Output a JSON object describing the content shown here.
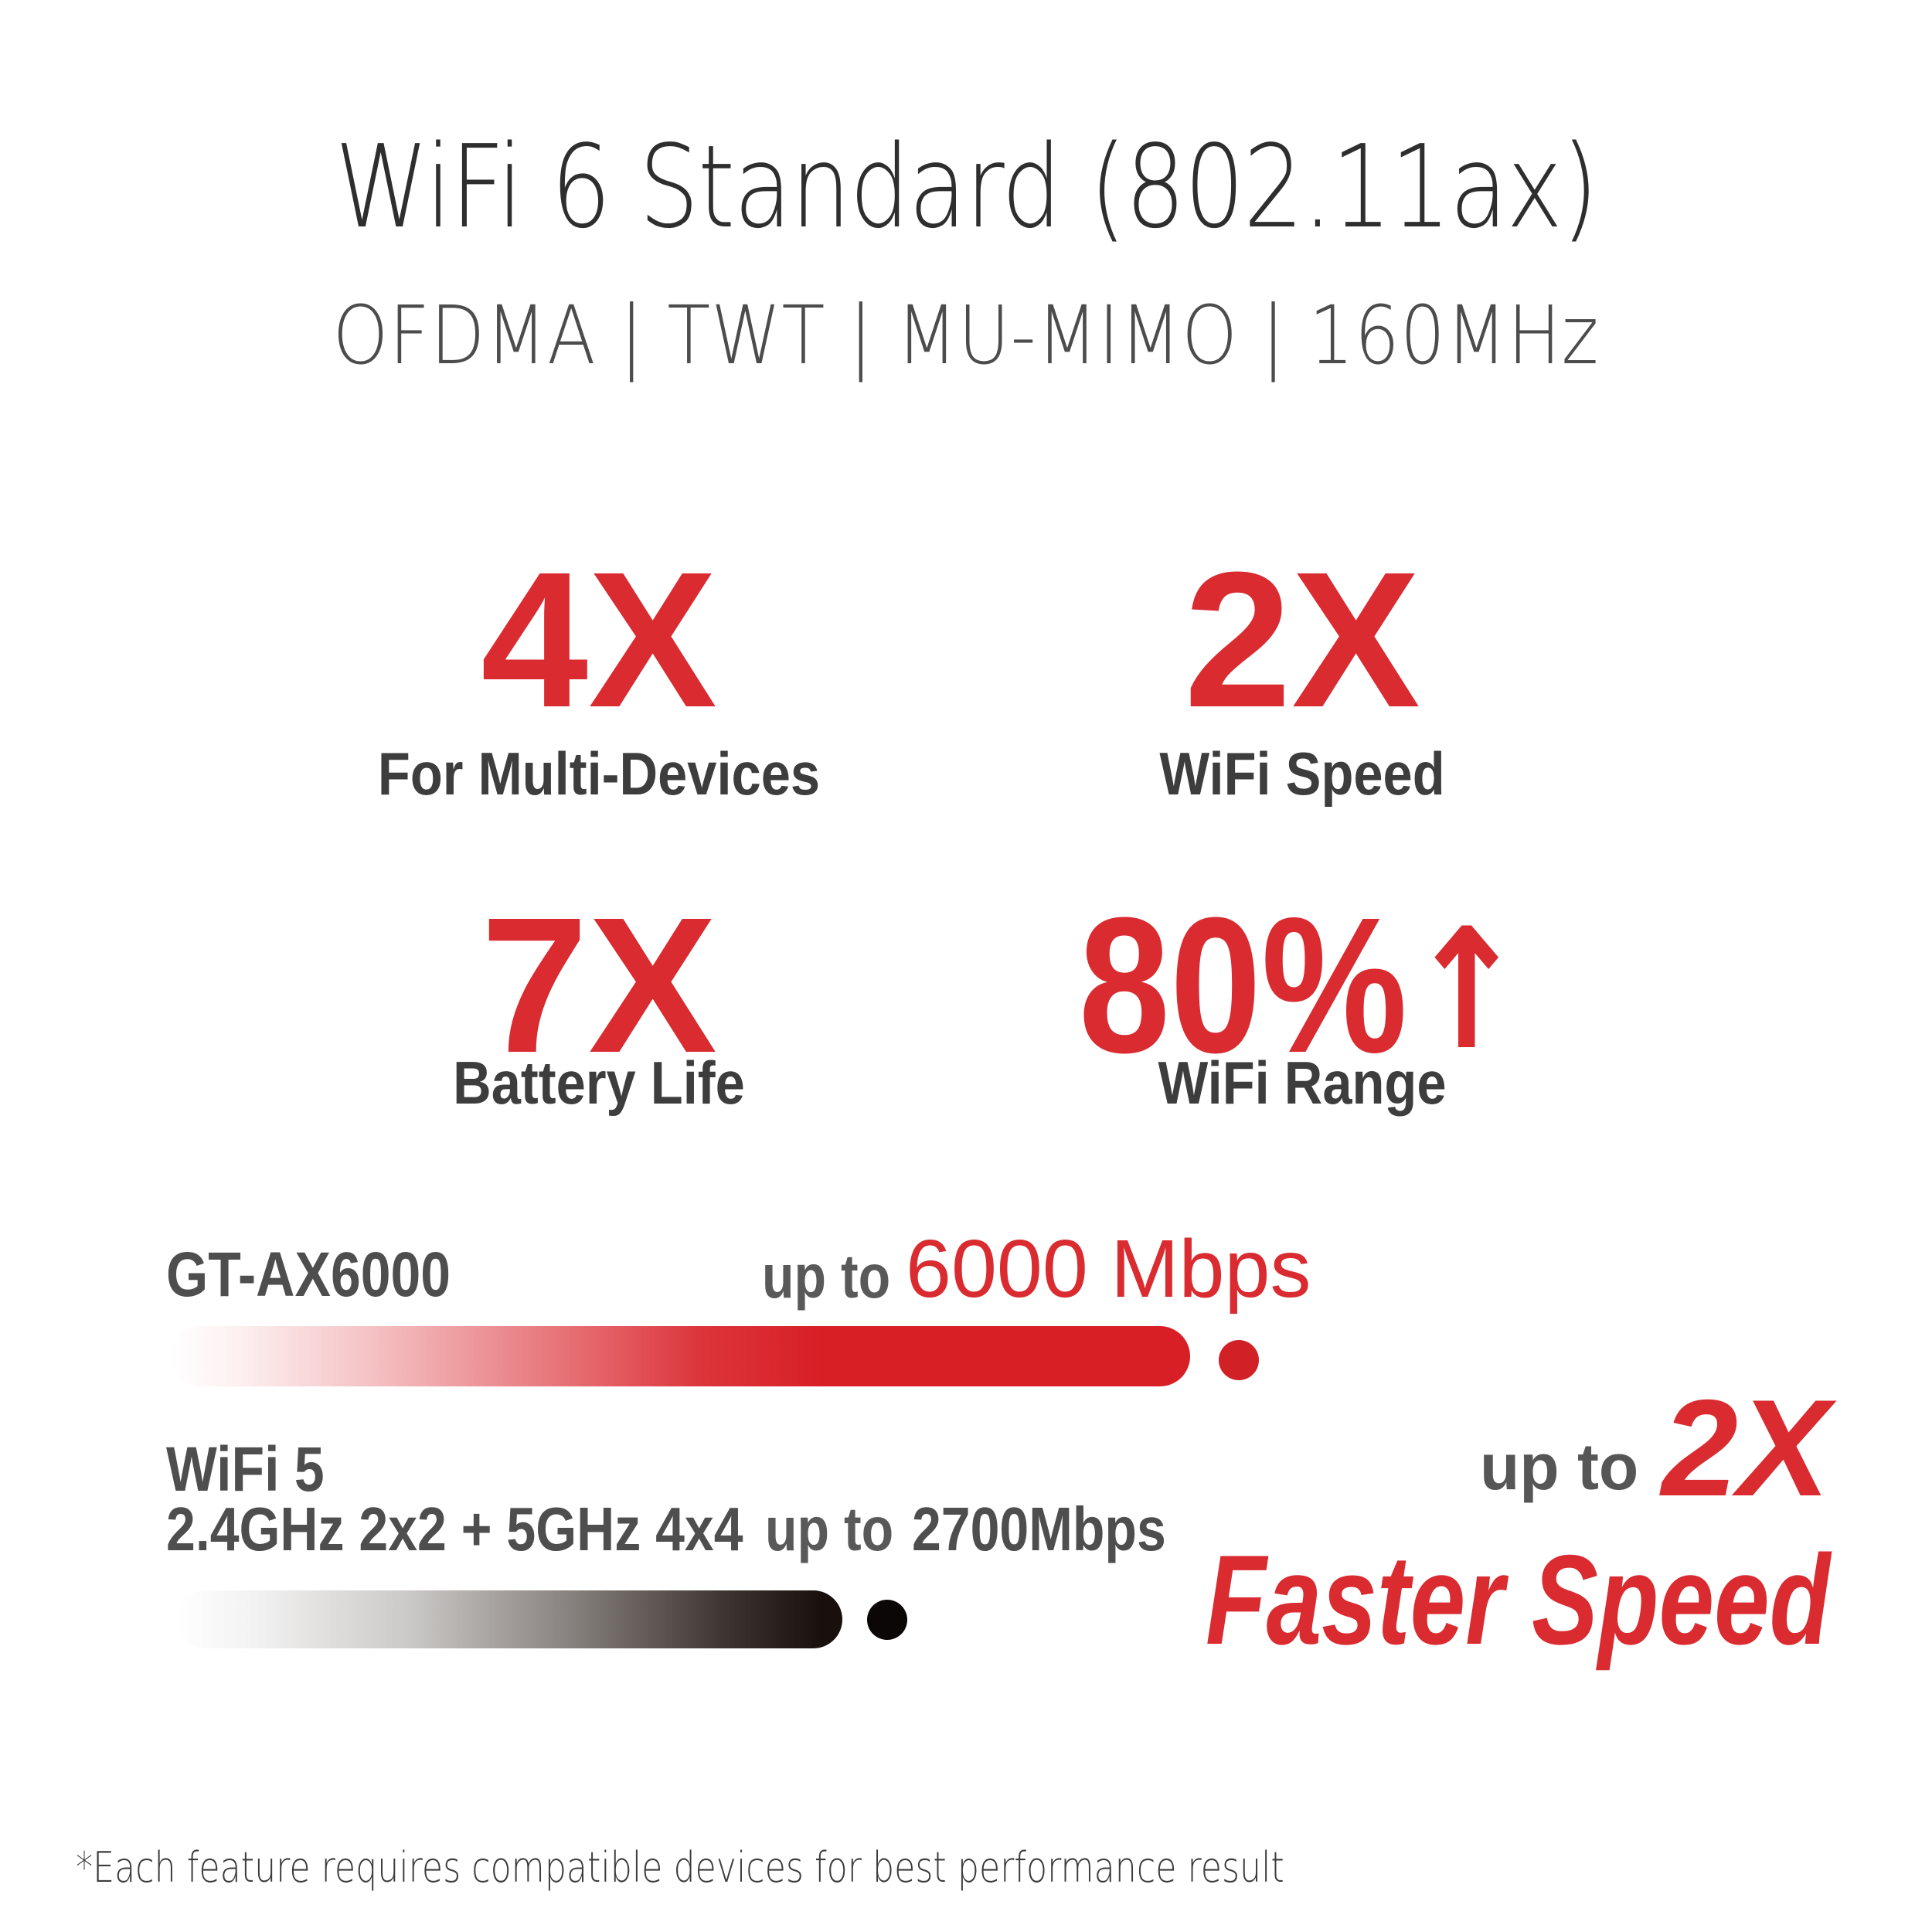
{
  "colors": {
    "accent": "#d92b30",
    "bar_red": "#d81f26",
    "bar_dark": "#190f0c",
    "dark": "#2e2e2e",
    "gray": "#4c4c4c"
  },
  "title": "WiFi 6 Standard (802.11ax)",
  "subtitle": "OFDMA | TWT | MU-MIMO | 160MHz",
  "stats": [
    {
      "value": "4X",
      "label": "For Multi-Devices"
    },
    {
      "value": "2X",
      "label": "WiFi Speed"
    },
    {
      "value": "7X",
      "label": "Battery Life"
    },
    {
      "value": "80%",
      "icon": "↑",
      "label": "WiFi Range"
    }
  ],
  "comparison": {
    "rows": [
      {
        "name": "GT-AX6000",
        "prefix": "up to",
        "speed": "6000 Mbps"
      },
      {
        "name": "WiFi 5",
        "spec": "2.4GHz 2x2 + 5GHz 4x4",
        "prefix": "up to",
        "speed": "2700Mbps"
      }
    ],
    "callout": {
      "prefix": "up to",
      "multiplier": "2X",
      "label": "Faster Speed"
    }
  },
  "footnote": "*Each feature requires compatible devices for best performance result",
  "chart_data": {
    "type": "bar",
    "orientation": "horizontal",
    "title": "WiFi 6 Standard (802.11ax)",
    "subtitle": "OFDMA | TWT | MU-MIMO | 160MHz",
    "categories": [
      "GT-AX6000",
      "WiFi 5 2.4GHz 2x2 + 5GHz 4x4"
    ],
    "values": [
      6000,
      2700
    ],
    "unit": "Mbps",
    "value_labels": [
      "up to 6000 Mbps",
      "up to 2700Mbps"
    ],
    "series_colors": [
      "#d81f26",
      "#190f0c"
    ],
    "annotations": [
      "4X For Multi-Devices",
      "2X WiFi Speed",
      "7X Battery Life",
      "80%↑ WiFi Range",
      "up to 2X Faster Speed"
    ],
    "grid": false,
    "legend": false,
    "footnote": "*Each feature requires compatible devices for best performance result"
  }
}
